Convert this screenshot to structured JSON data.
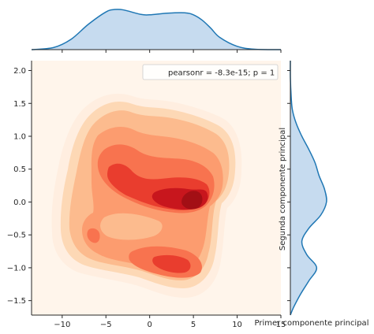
{
  "chart_data": {
    "type": "kde-jointplot",
    "xlabel": "Primer componente principal",
    "ylabel": "Segunda componente principal",
    "xlim": [
      -13.5,
      15
    ],
    "ylim": [
      -1.72,
      2.15
    ],
    "x_ticks": [
      -10,
      -5,
      0,
      5,
      10,
      15
    ],
    "y_ticks": [
      -1.5,
      -1.0,
      -0.5,
      0.0,
      0.5,
      1.0,
      1.5,
      2.0
    ],
    "x_tick_labels": [
      "−10",
      "−5",
      "0",
      "5",
      "10",
      "15"
    ],
    "y_tick_labels": [
      "−1.5",
      "−1.0",
      "−0.5",
      "0.0",
      "0.5",
      "1.0",
      "1.5",
      "2.0"
    ],
    "annotation": "pearsonr = -8.3e-15; p = 1",
    "legend_position": "upper-right",
    "colormap": "Reds",
    "density_peaks": [
      {
        "x": 4.8,
        "y": 0.05,
        "level": "max"
      },
      {
        "x": 3.0,
        "y": -0.95,
        "level": "high"
      },
      {
        "x": -4.5,
        "y": 0.35,
        "level": "high"
      },
      {
        "x": -6.0,
        "y": -0.55,
        "level": "medium"
      }
    ],
    "marginal_x": {
      "x": [
        -13.5,
        -11,
        -9,
        -7,
        -5,
        -4,
        -3,
        -1,
        0,
        2,
        4,
        5,
        6,
        7,
        8,
        10,
        12,
        15
      ],
      "density": [
        0.0,
        0.05,
        0.25,
        0.62,
        0.92,
        0.98,
        0.97,
        0.86,
        0.85,
        0.89,
        0.9,
        0.85,
        0.72,
        0.52,
        0.3,
        0.08,
        0.01,
        0.0
      ]
    },
    "marginal_y": {
      "y": [
        -1.72,
        -1.6,
        -1.4,
        -1.2,
        -1.0,
        -0.8,
        -0.6,
        -0.4,
        -0.2,
        0.0,
        0.2,
        0.4,
        0.6,
        0.8,
        1.0,
        1.2,
        1.4,
        1.6,
        1.9,
        2.15
      ],
      "density": [
        0.0,
        0.08,
        0.25,
        0.45,
        0.64,
        0.4,
        0.28,
        0.45,
        0.74,
        0.88,
        0.83,
        0.7,
        0.6,
        0.45,
        0.28,
        0.14,
        0.05,
        0.02,
        0.0,
        0.0
      ]
    },
    "colors": {
      "marginal_line": "#1f77b4",
      "marginal_fill": "#c6dbef",
      "background": "#fff5eb",
      "levels": [
        "#ffeee0",
        "#fdd8b5",
        "#fcbb8e",
        "#fc9c6f",
        "#f8734f",
        "#e93d2e",
        "#c8161d",
        "#a30f15"
      ]
    }
  }
}
